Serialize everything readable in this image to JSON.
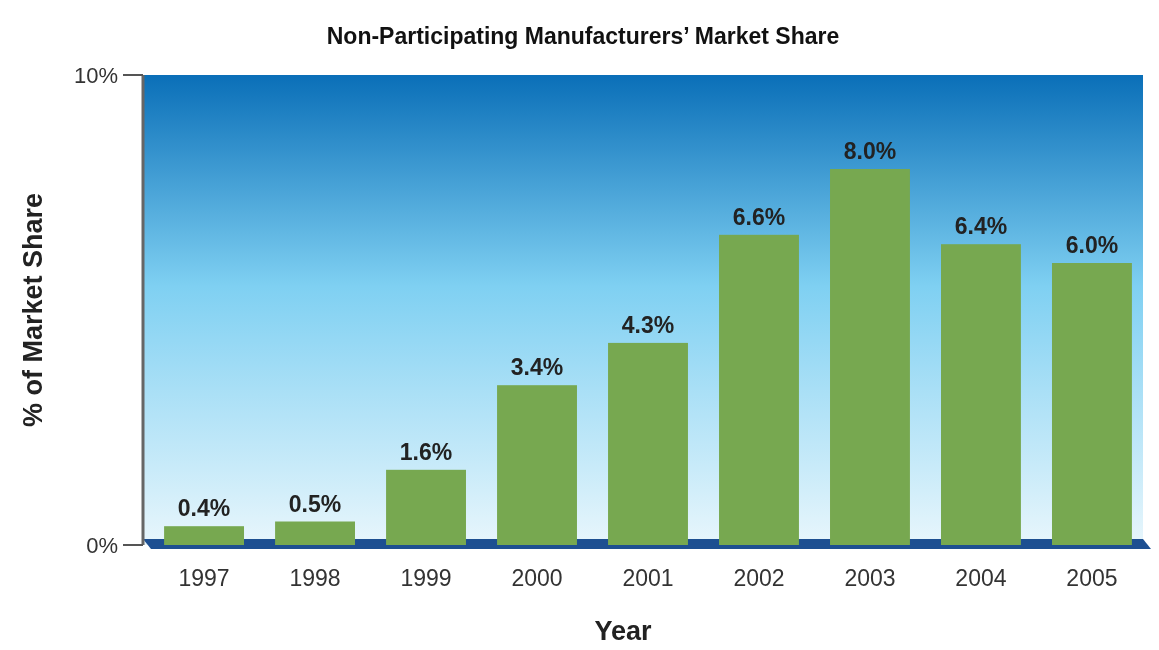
{
  "chart_data": {
    "type": "bar",
    "title": "Non-Participating Manufacturers’ Market Share",
    "xlabel": "Year",
    "ylabel": "% of Market Share",
    "categories": [
      "1997",
      "1998",
      "1999",
      "2000",
      "2001",
      "2002",
      "2003",
      "2004",
      "2005"
    ],
    "values": [
      0.4,
      0.5,
      1.6,
      3.4,
      4.3,
      6.6,
      8.0,
      6.4,
      6.0
    ],
    "value_labels": [
      "0.4%",
      "0.5%",
      "1.6%",
      "3.4%",
      "4.3%",
      "6.6%",
      "8.0%",
      "6.4%",
      "6.0%"
    ],
    "color": "#77a850",
    "ylim": [
      0,
      10
    ],
    "yticks": [
      {
        "value": 0,
        "label": "0%"
      },
      {
        "value": 10,
        "label": "10%"
      }
    ],
    "grid": false
  }
}
